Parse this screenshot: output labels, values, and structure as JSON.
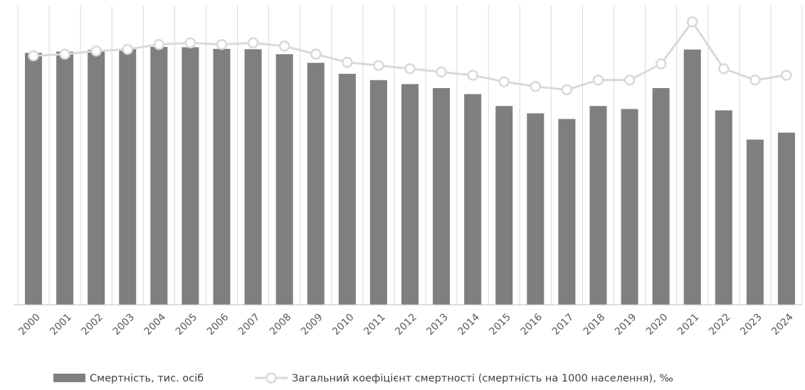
{
  "chart_data": {
    "type": "bar",
    "categories": [
      "2000",
      "2001",
      "2002",
      "2003",
      "2004",
      "2005",
      "2006",
      "2007",
      "2008",
      "2009",
      "2010",
      "2011",
      "2012",
      "2013",
      "2014",
      "2015",
      "2016",
      "2017",
      "2018",
      "2019",
      "2020",
      "2021",
      "2022",
      "2023",
      "2024"
    ],
    "series": [
      {
        "name": "Смертність, тис. осіб",
        "type": "bar",
        "axis": "primary",
        "values": [
          758,
          762,
          767,
          770,
          776,
          775,
          770,
          769,
          754,
          728,
          695,
          676,
          664,
          652,
          634,
          598,
          576,
          559,
          598,
          589,
          652,
          768,
          585,
          497,
          518
        ]
      },
      {
        "name": "Загальний коефіцієнт смертності (смертність на 1000 населення), ‰",
        "type": "line",
        "axis": "secondary",
        "values": [
          15.4,
          15.5,
          15.7,
          15.8,
          16.1,
          16.2,
          16.1,
          16.2,
          16.0,
          15.5,
          15.0,
          14.8,
          14.6,
          14.4,
          14.2,
          13.8,
          13.5,
          13.3,
          13.9,
          13.9,
          14.9,
          17.5,
          14.6,
          13.9,
          14.2
        ]
      }
    ],
    "y_primary_range": [
      0,
      900
    ],
    "y_secondary_range": [
      0,
      18.5
    ],
    "grid": "vertical",
    "legend_position": "bottom",
    "colors": {
      "bars": "#7f7f7f",
      "line": "#d9d9d9",
      "marker_fill": "#ffffff",
      "grid": "#d9d9d9",
      "axis": "#bfbfbf"
    }
  }
}
